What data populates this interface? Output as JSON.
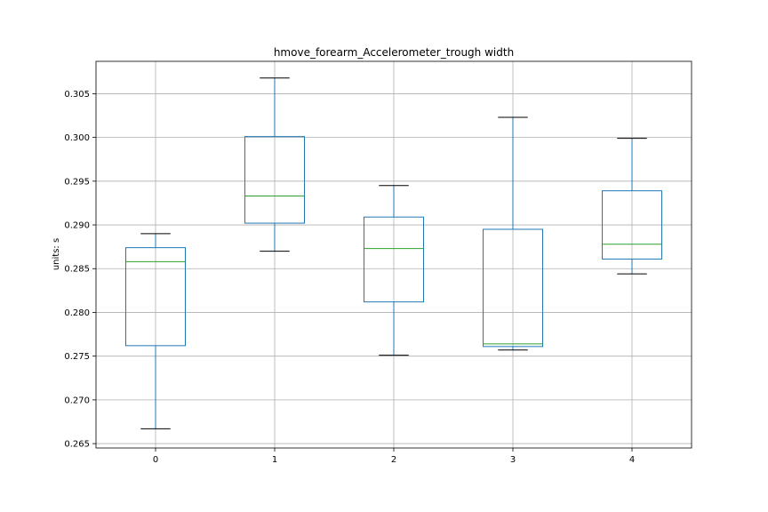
{
  "chart_data": {
    "type": "box",
    "title": "hmove_forearm_Accelerometer_trough width",
    "xlabel": "",
    "ylabel": "units: s",
    "categories": [
      "0",
      "1",
      "2",
      "3",
      "4"
    ],
    "ylim": [
      0.2645,
      0.3087
    ],
    "yticks": [
      "0.265",
      "0.270",
      "0.275",
      "0.280",
      "0.285",
      "0.290",
      "0.295",
      "0.300",
      "0.305"
    ],
    "grid": true,
    "boxes": [
      {
        "category": "0",
        "whisker_low": 0.2667,
        "q1": 0.2762,
        "median": 0.2858,
        "q3": 0.2874,
        "whisker_high": 0.289
      },
      {
        "category": "1",
        "whisker_low": 0.287,
        "q1": 0.2902,
        "median": 0.2933,
        "q3": 0.3001,
        "whisker_high": 0.3068
      },
      {
        "category": "2",
        "whisker_low": 0.2751,
        "q1": 0.2812,
        "median": 0.2873,
        "q3": 0.2909,
        "whisker_high": 0.2945
      },
      {
        "category": "3",
        "whisker_low": 0.2757,
        "q1": 0.2761,
        "median": 0.2764,
        "q3": 0.2895,
        "whisker_high": 0.3023
      },
      {
        "category": "4",
        "whisker_low": 0.2844,
        "q1": 0.2861,
        "median": 0.2878,
        "q3": 0.2939,
        "whisker_high": 0.2999
      }
    ],
    "colors": {
      "box": "#1f77b4",
      "median": "#2ca02c",
      "cap": "#000000",
      "grid": "#b0b0b0",
      "axis": "#000000"
    }
  }
}
